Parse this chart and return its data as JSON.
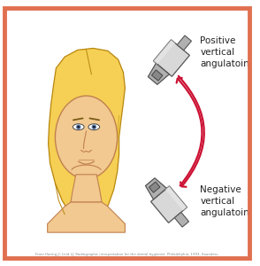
{
  "bg_color": "#ffffff",
  "border_color": "#e07050",
  "face_skin": "#f2c990",
  "hair_color": "#f5d055",
  "hair_edge": "#b8860b",
  "face_edge": "#c08050",
  "title_pos": "Positive\nvertical\nangulatoin",
  "title_neg": "Negative\nvertical\nangulatoin",
  "arrow_color": "#cc1133",
  "caption": "From Haring JI, Lind LJ: Radiographic interpretation for the dental hygienist. Philadelphia, 1993, Saunders.",
  "text_color": "#222222",
  "xray_light": "#d8d8d8",
  "xray_mid": "#b0b0b0",
  "xray_dark": "#888888"
}
